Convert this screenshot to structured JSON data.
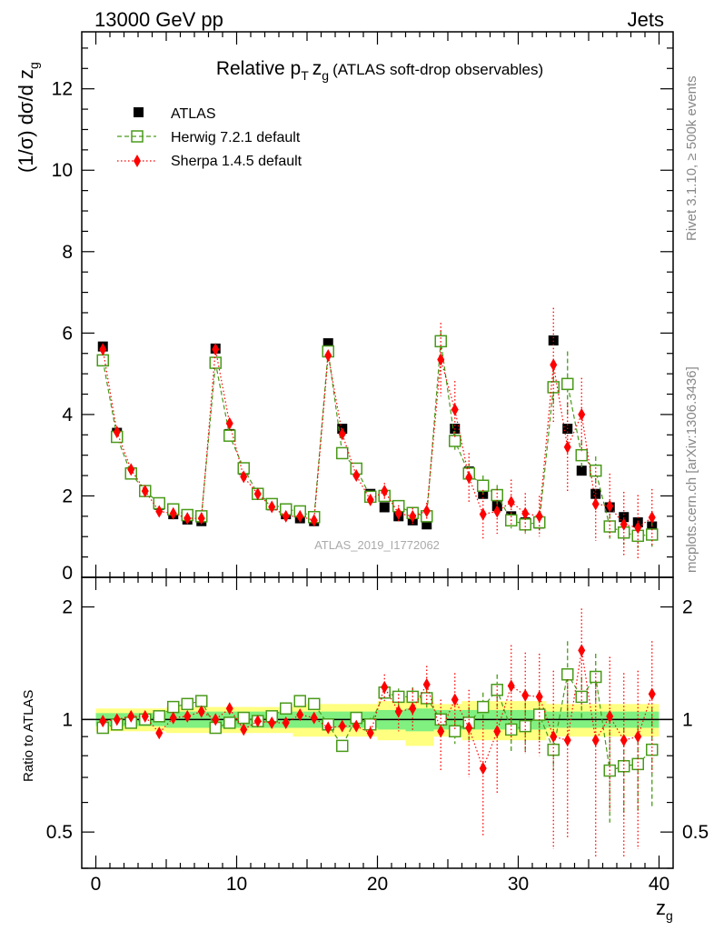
{
  "header": {
    "left": "13000 GeV pp",
    "right": "Jets"
  },
  "side_labels": {
    "rivet": "Rivet 3.1.10, ≥ 500k events",
    "mcplots": "mcplots.cern.ch [arXiv:1306.3436]"
  },
  "watermark": "ATLAS_2019_I1772062",
  "colors": {
    "atlas": "#000000",
    "herwig": "#4a9a1a",
    "sherpa": "#ff0000",
    "band_outer": "#ffff80",
    "band_inner": "#80f080"
  },
  "chart_data": [
    {
      "type": "scatter",
      "title_main": "Relative p",
      "title_sub": "T",
      "title_var": "z",
      "title_var_sub": "g",
      "title_rest": "(ATLAS soft-drop observables)",
      "ylabel_main": "(1/σ) dσ/d z",
      "ylabel_sub": "g",
      "xlim": [
        -1,
        41
      ],
      "ylim": [
        0,
        13.4
      ],
      "yticks": [
        0,
        2,
        4,
        6,
        8,
        10,
        12
      ],
      "legend": [
        "ATLAS",
        "Herwig 7.2.1 default",
        "Sherpa 1.4.5 default"
      ],
      "x": [
        0.5,
        1.5,
        2.5,
        3.5,
        4.5,
        5.5,
        6.5,
        7.5,
        8.5,
        9.5,
        10.5,
        11.5,
        12.5,
        13.5,
        14.5,
        15.5,
        16.5,
        17.5,
        18.5,
        19.5,
        20.5,
        21.5,
        22.5,
        23.5,
        24.5,
        25.5,
        26.5,
        27.5,
        28.5,
        29.5,
        30.5,
        31.5,
        32.5,
        33.5,
        34.5,
        35.5,
        36.5,
        37.5,
        38.5,
        39.5
      ],
      "series": [
        {
          "name": "ATLAS",
          "values": [
            5.67,
            3.55,
            2.58,
            2.1,
            1.78,
            1.55,
            1.42,
            1.38,
            5.62,
            3.52,
            2.64,
            2.07,
            1.77,
            1.55,
            1.45,
            1.38,
            5.75,
            3.65,
            2.65,
            2.05,
            1.72,
            1.5,
            1.4,
            1.3,
            5.82,
            3.65,
            2.6,
            2.05,
            1.75,
            1.5,
            1.35,
            1.32,
            5.82,
            3.65,
            2.62,
            2.05,
            1.72,
            1.48,
            1.35,
            1.25
          ]
        },
        {
          "name": "Herwig 7.2.1 default",
          "values": [
            5.33,
            3.45,
            2.55,
            2.12,
            1.82,
            1.67,
            1.53,
            1.5,
            5.27,
            3.48,
            2.68,
            2.05,
            1.8,
            1.67,
            1.62,
            1.48,
            5.55,
            3.05,
            2.67,
            1.98,
            2.0,
            1.75,
            1.58,
            1.5,
            5.8,
            3.35,
            2.55,
            2.25,
            2.02,
            1.4,
            1.3,
            1.35,
            4.67,
            4.75,
            3.0,
            2.62,
            1.25,
            1.1,
            1.02,
            1.05
          ]
        },
        {
          "name": "Sherpa 1.4.5 default",
          "values": [
            5.6,
            3.57,
            2.65,
            2.12,
            1.62,
            1.57,
            1.45,
            1.45,
            5.6,
            3.78,
            2.47,
            2.05,
            1.73,
            1.5,
            1.5,
            1.4,
            5.45,
            3.52,
            2.5,
            1.9,
            2.12,
            1.57,
            1.5,
            1.63,
            5.35,
            4.12,
            2.45,
            1.55,
            1.62,
            1.85,
            1.57,
            1.5,
            5.22,
            3.2,
            4.0,
            1.8,
            1.75,
            1.3,
            1.22,
            1.47
          ]
        }
      ],
      "errors": {
        "Herwig 7.2.1 default": [
          0.05,
          0.05,
          0.05,
          0.05,
          0.05,
          0.05,
          0.05,
          0.05,
          0.08,
          0.08,
          0.06,
          0.05,
          0.05,
          0.05,
          0.05,
          0.05,
          0.1,
          0.1,
          0.08,
          0.08,
          0.1,
          0.1,
          0.1,
          0.1,
          0.25,
          0.25,
          0.25,
          0.25,
          0.25,
          0.2,
          0.2,
          0.2,
          0.45,
          0.8,
          0.35,
          0.35,
          0.3,
          0.3,
          0.3,
          0.3
        ],
        "Sherpa 1.4.5 default": [
          0.05,
          0.05,
          0.05,
          0.05,
          0.05,
          0.05,
          0.05,
          0.05,
          0.08,
          0.08,
          0.06,
          0.05,
          0.05,
          0.05,
          0.05,
          0.05,
          0.1,
          0.1,
          0.08,
          0.08,
          0.2,
          0.2,
          0.2,
          0.2,
          0.9,
          0.7,
          0.6,
          0.6,
          0.55,
          0.55,
          0.5,
          0.5,
          1.4,
          1.1,
          0.9,
          0.9,
          0.8,
          0.8,
          0.8,
          0.7
        ]
      }
    },
    {
      "type": "scatter",
      "ylabel": "Ratio to ATLAS",
      "xlabel_main": "z",
      "xlabel_sub": "g",
      "yscale": "log",
      "ylim": [
        0.4,
        2.4
      ],
      "yticks": [
        0.5,
        1,
        2
      ],
      "ytick_labels": [
        "0.5",
        "1",
        "2"
      ],
      "xticks": [
        0,
        10,
        20,
        30,
        40
      ],
      "x": [
        0.5,
        1.5,
        2.5,
        3.5,
        4.5,
        5.5,
        6.5,
        7.5,
        8.5,
        9.5,
        10.5,
        11.5,
        12.5,
        13.5,
        14.5,
        15.5,
        16.5,
        17.5,
        18.5,
        19.5,
        20.5,
        21.5,
        22.5,
        23.5,
        24.5,
        25.5,
        26.5,
        27.5,
        28.5,
        29.5,
        30.5,
        31.5,
        32.5,
        33.5,
        34.5,
        35.5,
        36.5,
        37.5,
        38.5,
        39.5
      ],
      "series": [
        {
          "name": "Herwig 7.2.1 default",
          "values": [
            0.95,
            0.97,
            0.98,
            1.0,
            1.02,
            1.08,
            1.1,
            1.12,
            0.95,
            0.98,
            1.01,
            0.99,
            1.02,
            1.07,
            1.12,
            1.1,
            0.97,
            0.85,
            1.01,
            0.97,
            1.18,
            1.15,
            1.15,
            1.14,
            1.0,
            0.93,
            0.98,
            1.08,
            1.2,
            0.94,
            0.96,
            1.03,
            0.83,
            1.32,
            1.15,
            1.3,
            0.73,
            0.75,
            0.76,
            0.83
          ]
        },
        {
          "name": "Sherpa 1.4.5 default",
          "values": [
            0.99,
            1.0,
            1.02,
            1.02,
            0.92,
            1.01,
            1.02,
            1.05,
            1.0,
            1.07,
            0.94,
            0.99,
            0.98,
            0.98,
            1.03,
            1.01,
            0.95,
            0.96,
            0.96,
            0.92,
            1.22,
            1.05,
            1.07,
            1.24,
            0.93,
            1.13,
            0.95,
            0.74,
            0.93,
            1.23,
            1.16,
            1.15,
            0.9,
            0.88,
            1.53,
            0.88,
            1.02,
            0.88,
            0.9,
            1.17
          ]
        }
      ],
      "errors": {
        "Herwig 7.2.1 default": [
          0.01,
          0.01,
          0.01,
          0.01,
          0.01,
          0.01,
          0.01,
          0.01,
          0.01,
          0.01,
          0.01,
          0.01,
          0.01,
          0.01,
          0.01,
          0.01,
          0.02,
          0.03,
          0.03,
          0.04,
          0.05,
          0.06,
          0.07,
          0.07,
          0.05,
          0.07,
          0.1,
          0.1,
          0.12,
          0.12,
          0.15,
          0.15,
          0.1,
          0.3,
          0.15,
          0.2,
          0.2,
          0.2,
          0.2,
          0.25
        ],
        "Sherpa 1.4.5 default": [
          0.01,
          0.01,
          0.01,
          0.01,
          0.01,
          0.01,
          0.01,
          0.01,
          0.01,
          0.02,
          0.02,
          0.02,
          0.02,
          0.02,
          0.02,
          0.02,
          0.02,
          0.03,
          0.03,
          0.04,
          0.1,
          0.12,
          0.14,
          0.15,
          0.2,
          0.2,
          0.25,
          0.25,
          0.3,
          0.35,
          0.35,
          0.35,
          0.45,
          0.4,
          0.45,
          0.45,
          0.45,
          0.45,
          0.45,
          0.45
        ]
      },
      "band_outer": [
        0.07,
        0.07,
        0.07,
        0.07,
        0.07,
        0.08,
        0.08,
        0.08,
        0.08,
        0.08,
        0.08,
        0.08,
        0.08,
        0.08,
        0.1,
        0.1,
        0.1,
        0.1,
        0.1,
        0.1,
        0.12,
        0.12,
        0.15,
        0.15,
        0.1,
        0.1,
        0.12,
        0.12,
        0.12,
        0.12,
        0.12,
        0.12,
        0.1,
        0.1,
        0.1,
        0.1,
        0.1,
        0.1,
        0.1,
        0.1
      ],
      "band_inner": [
        0.04,
        0.04,
        0.04,
        0.04,
        0.04,
        0.05,
        0.05,
        0.05,
        0.05,
        0.05,
        0.05,
        0.05,
        0.05,
        0.05,
        0.05,
        0.05,
        0.05,
        0.05,
        0.05,
        0.05,
        0.06,
        0.06,
        0.07,
        0.07,
        0.06,
        0.06,
        0.06,
        0.06,
        0.06,
        0.06,
        0.06,
        0.06,
        0.05,
        0.05,
        0.05,
        0.05,
        0.05,
        0.05,
        0.05,
        0.05
      ]
    }
  ]
}
